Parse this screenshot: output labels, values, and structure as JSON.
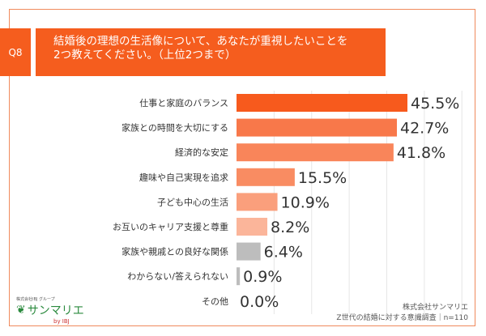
{
  "header": {
    "question_no": "Q8",
    "title_line1": "結婚後の理想の生活像について、あなたが重視したいことを",
    "title_line2": "2つ教えてください。（上位2つまで）"
  },
  "chart_data": {
    "type": "bar",
    "orientation": "horizontal",
    "categories": [
      "仕事と家庭のバランス",
      "家族との時間を大切にする",
      "経済的な安定",
      "趣味や自己実現を追求",
      "子ども中心の生活",
      "お互いのキャリア支援と尊重",
      "家族や親戚との良好な関係",
      "わからない/答えられない",
      "その他"
    ],
    "values": [
      45.5,
      42.7,
      41.8,
      15.5,
      10.9,
      8.2,
      6.4,
      0.9,
      0.0
    ],
    "labels": [
      "45.5%",
      "42.7%",
      "41.8%",
      "15.5%",
      "10.9%",
      "8.2%",
      "6.4%",
      "0.9%",
      "0.0%"
    ],
    "colors": [
      "#f75a1d",
      "#f8784a",
      "#f9855a",
      "#f98c62",
      "#fa9f7c",
      "#fbb59a",
      "#bdbdbd",
      "#bdbdbd",
      "#bdbdbd"
    ],
    "xlim": [
      0,
      60
    ],
    "grid": true,
    "unit": "%"
  },
  "footer": {
    "logo_tagline": "株式会社IBJ グループ",
    "logo_name": "サンマリエ",
    "logo_by": "by IBJ",
    "company": "株式会社サンマリエ",
    "survey": "Z世代の結婚に対する意識調査｜n=110"
  }
}
